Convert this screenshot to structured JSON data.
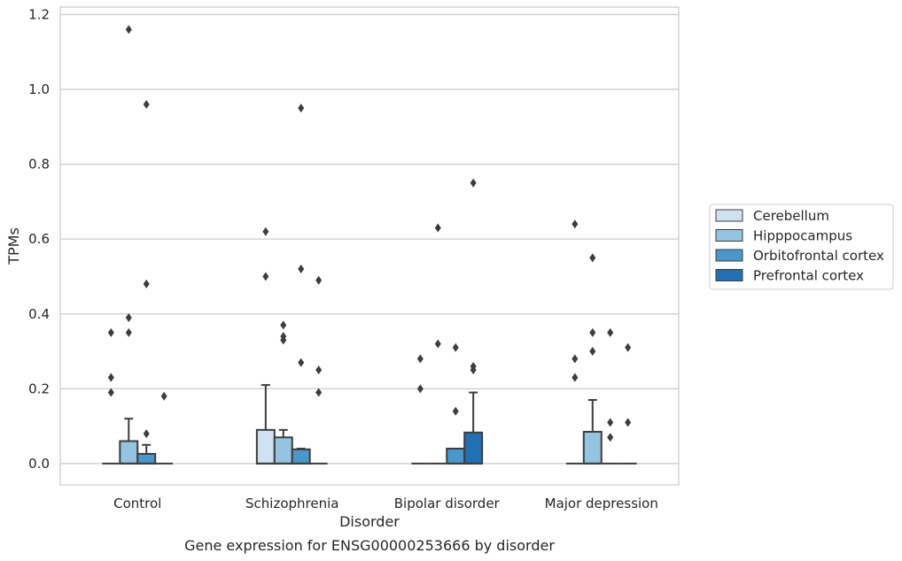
{
  "chart_data": {
    "type": "box",
    "xlabel": "Disorder",
    "ylabel": "TPMs",
    "caption": "Gene expression for ENSG00000253666 by disorder",
    "categories": [
      "Control",
      "Schizophrenia",
      "Bipolar disorder",
      "Major depression"
    ],
    "ylim": [
      -0.057,
      1.22
    ],
    "yticks": [
      0.0,
      0.2,
      0.4,
      0.6,
      0.8,
      1.0,
      1.2
    ],
    "ytick_labels": [
      "0.0",
      "0.2",
      "0.4",
      "0.6",
      "0.8",
      "1.0",
      "1.2"
    ],
    "grid": "horizontal",
    "legend_position": "right",
    "series": [
      {
        "name": "Cerebellum",
        "color": "#d0e1f2",
        "boxes": [
          {
            "q1": 0,
            "median": 0,
            "q3": 0,
            "whisker_low": 0,
            "whisker_high": 0,
            "outliers": [
              0.35,
              0.23,
              0.19
            ]
          },
          {
            "q1": 0,
            "median": 0,
            "q3": 0.09,
            "whisker_low": 0,
            "whisker_high": 0.21,
            "outliers": [
              0.62,
              0.5
            ]
          },
          {
            "q1": 0,
            "median": 0,
            "q3": 0,
            "whisker_low": 0,
            "whisker_high": 0,
            "outliers": [
              0.28,
              0.2
            ]
          },
          {
            "q1": 0,
            "median": 0,
            "q3": 0,
            "whisker_low": 0,
            "whisker_high": 0,
            "outliers": [
              0.64,
              0.28,
              0.23
            ]
          }
        ]
      },
      {
        "name": "Hipppocampus",
        "color": "#94c4df",
        "boxes": [
          {
            "q1": 0,
            "median": 0,
            "q3": 0.06,
            "whisker_low": 0,
            "whisker_high": 0.12,
            "outliers": [
              1.16,
              0.39,
              0.35
            ]
          },
          {
            "q1": 0,
            "median": 0,
            "q3": 0.07,
            "whisker_low": 0,
            "whisker_high": 0.09,
            "outliers": [
              0.37,
              0.34,
              0.33
            ]
          },
          {
            "q1": 0,
            "median": 0,
            "q3": 0,
            "whisker_low": 0,
            "whisker_high": 0,
            "outliers": [
              0.63,
              0.32
            ]
          },
          {
            "q1": 0,
            "median": 0,
            "q3": 0.085,
            "whisker_low": 0,
            "whisker_high": 0.17,
            "outliers": [
              0.55,
              0.35,
              0.3
            ]
          }
        ]
      },
      {
        "name": "Orbitofrontal cortex",
        "color": "#4a98c9",
        "boxes": [
          {
            "q1": 0,
            "median": 0,
            "q3": 0.026,
            "whisker_low": 0,
            "whisker_high": 0.05,
            "outliers": [
              0.96,
              0.48,
              0.08
            ]
          },
          {
            "q1": 0,
            "median": 0,
            "q3": 0.038,
            "whisker_low": 0,
            "whisker_high": 0.04,
            "outliers": [
              0.95,
              0.52,
              0.27
            ]
          },
          {
            "q1": 0,
            "median": 0,
            "q3": 0.04,
            "whisker_low": 0,
            "whisker_high": 0.04,
            "outliers": [
              0.31,
              0.14
            ]
          },
          {
            "q1": 0,
            "median": 0,
            "q3": 0,
            "whisker_low": 0,
            "whisker_high": 0,
            "outliers": [
              0.35,
              0.11,
              0.07
            ]
          }
        ]
      },
      {
        "name": "Prefrontal cortex",
        "color": "#2070b4",
        "boxes": [
          {
            "q1": 0,
            "median": 0,
            "q3": 0,
            "whisker_low": 0,
            "whisker_high": 0,
            "outliers": [
              0.18
            ]
          },
          {
            "q1": 0,
            "median": 0,
            "q3": 0,
            "whisker_low": 0,
            "whisker_high": 0,
            "outliers": [
              0.49,
              0.25,
              0.19
            ]
          },
          {
            "q1": 0,
            "median": 0,
            "q3": 0.083,
            "whisker_low": 0,
            "whisker_high": 0.19,
            "outliers": [
              0.75,
              0.26,
              0.25
            ]
          },
          {
            "q1": 0,
            "median": 0,
            "q3": 0,
            "whisker_low": 0,
            "whisker_high": 0,
            "outliers": [
              0.31,
              0.11
            ]
          }
        ]
      }
    ]
  }
}
